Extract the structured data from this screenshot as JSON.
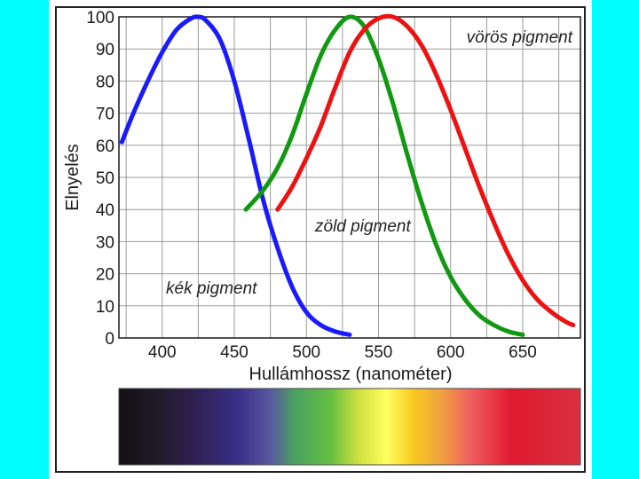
{
  "chart_data": {
    "type": "line",
    "title": "",
    "xlabel": "Hullámhossz (nanométer)",
    "ylabel": "Elnyelés",
    "xlim": [
      370,
      690
    ],
    "ylim": [
      0,
      100
    ],
    "x_ticks": [
      "400",
      "450",
      "500",
      "550",
      "600",
      "650"
    ],
    "y_ticks": [
      "0",
      "10",
      "20",
      "30",
      "40",
      "50",
      "60",
      "70",
      "80",
      "90",
      "100"
    ],
    "grid": true,
    "series": [
      {
        "name": "kék pigment",
        "color": "#1a1aff",
        "x": [
          372,
          380,
          390,
          400,
          410,
          420,
          425,
          430,
          440,
          450,
          460,
          470,
          480,
          490,
          500,
          510,
          520,
          530
        ],
        "y": [
          61,
          70,
          80,
          89,
          96,
          99.5,
          100,
          99,
          93,
          80,
          62,
          43,
          28,
          16,
          8,
          4,
          2,
          1
        ]
      },
      {
        "name": "zöld pigment",
        "color": "#119911",
        "x": [
          458,
          470,
          480,
          490,
          500,
          510,
          520,
          530,
          540,
          550,
          560,
          570,
          580,
          590,
          600,
          610,
          620,
          630,
          640,
          650
        ],
        "y": [
          40,
          46,
          53,
          63,
          76,
          88,
          96,
          100,
          97,
          87,
          73,
          57,
          42,
          29,
          19,
          12,
          7,
          4,
          2,
          1
        ]
      },
      {
        "name": "vörös pigment",
        "color": "#ee1111",
        "x": [
          480,
          490,
          500,
          510,
          520,
          530,
          540,
          550,
          560,
          570,
          580,
          590,
          600,
          610,
          620,
          630,
          640,
          650,
          660,
          670,
          680,
          685
        ],
        "y": [
          40,
          47,
          56,
          66,
          78,
          89,
          96,
          99.5,
          100,
          97,
          91,
          82,
          71,
          59,
          47,
          36,
          26,
          18,
          12,
          8,
          5,
          4
        ]
      }
    ],
    "annotations": [
      "vörös pigment",
      "zöld pigment",
      "kék pigment"
    ],
    "spectrum_bar": true
  }
}
